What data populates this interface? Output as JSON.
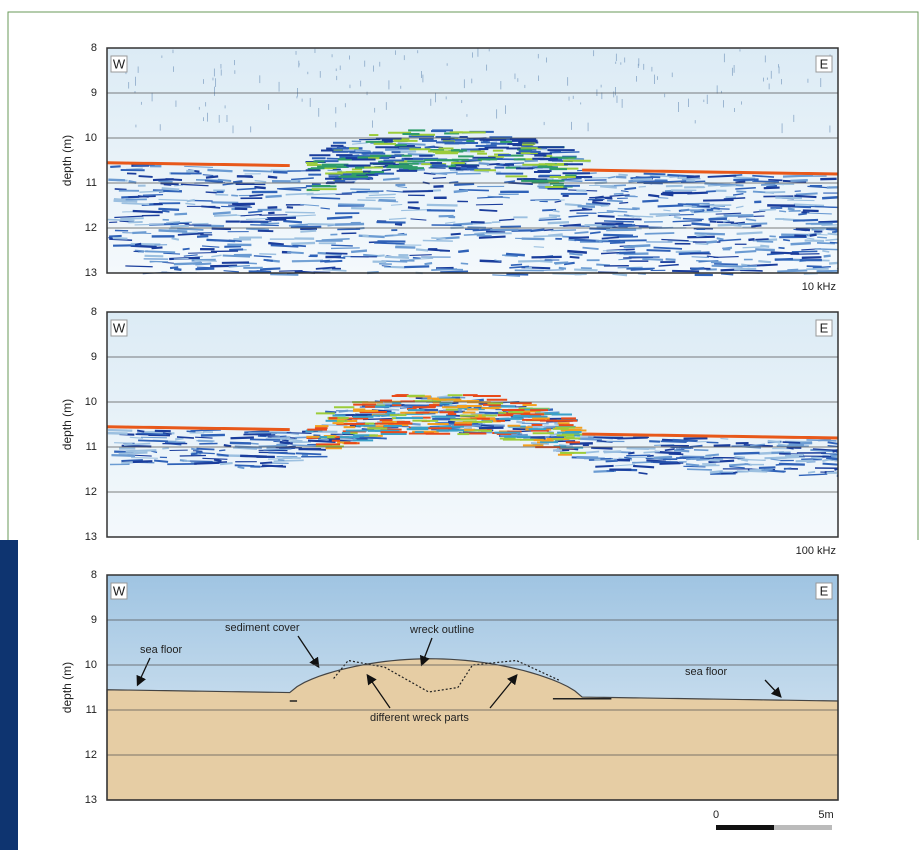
{
  "panels": [
    {
      "west": "W",
      "east": "E",
      "y_label": "depth (m)",
      "yticks": [
        8,
        9,
        10,
        11,
        12,
        13
      ],
      "caption": "10 kHz"
    },
    {
      "west": "W",
      "east": "E",
      "y_label": "depth (m)",
      "yticks": [
        8,
        9,
        10,
        11,
        12,
        13
      ],
      "caption": "100 kHz"
    },
    {
      "west": "W",
      "east": "E",
      "y_label": "depth (m)",
      "yticks": [
        8,
        9,
        10,
        11,
        12,
        13
      ],
      "annotations": [
        "sea floor",
        "sediment cover",
        "wreck outline",
        "different wreck parts",
        "sea floor"
      ]
    }
  ],
  "scale_bar": {
    "start": "0",
    "end": "5m"
  }
}
